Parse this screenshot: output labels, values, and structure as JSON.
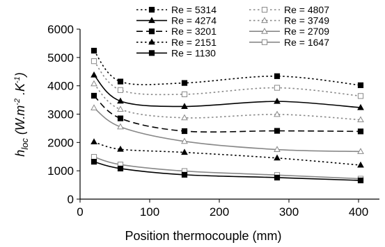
{
  "chart_data": {
    "type": "line",
    "xlabel": "Position thermocouple (mm)",
    "ylabel": {
      "main": "h",
      "sub": "loc",
      "unit_open": " (W.m",
      "exp1": "-2",
      "unit_mid": " .K",
      "exp2": "-1",
      "unit_close": ")"
    },
    "xlim": [
      0,
      430
    ],
    "ylim": [
      0,
      6000
    ],
    "xticks": [
      0,
      100,
      200,
      300,
      400
    ],
    "yticks": [
      0,
      1000,
      2000,
      3000,
      4000,
      5000,
      6000
    ],
    "grid": false,
    "legend_position": "top",
    "x": [
      20,
      58,
      150,
      283,
      403
    ],
    "series": [
      {
        "name": "Re = 5314",
        "color": "#000000",
        "dash": "dotted",
        "marker": "square-filled",
        "values": [
          5240,
          4150,
          4100,
          4340,
          4020
        ]
      },
      {
        "name": "Re = 4807",
        "color": "#888888",
        "dash": "dotted",
        "marker": "square-open",
        "values": [
          4870,
          3850,
          3700,
          3930,
          3640
        ]
      },
      {
        "name": "Re = 4274",
        "color": "#000000",
        "dash": "solid",
        "marker": "triangle-filled",
        "values": [
          4380,
          3460,
          3270,
          3450,
          3230
        ]
      },
      {
        "name": "Re = 3749",
        "color": "#888888",
        "dash": "dotted",
        "marker": "triangle-open",
        "values": [
          4070,
          3170,
          2870,
          2990,
          2800
        ]
      },
      {
        "name": "Re = 3201",
        "color": "#000000",
        "dash": "dashed",
        "marker": "square-filled",
        "values": [
          3650,
          2850,
          2400,
          2410,
          2390
        ]
      },
      {
        "name": "Re = 2709",
        "color": "#888888",
        "dash": "solid",
        "marker": "triangle-open",
        "values": [
          3220,
          2550,
          2040,
          1750,
          1680
        ]
      },
      {
        "name": "Re = 2151",
        "color": "#000000",
        "dash": "dotted",
        "marker": "triangle-filled",
        "values": [
          2020,
          1760,
          1650,
          1450,
          1200
        ]
      },
      {
        "name": "Re = 1647",
        "color": "#888888",
        "dash": "solid",
        "marker": "square-open",
        "values": [
          1490,
          1220,
          990,
          850,
          720
        ]
      },
      {
        "name": "Re = 1130",
        "color": "#000000",
        "dash": "solid",
        "marker": "square-filled",
        "values": [
          1320,
          1080,
          860,
          760,
          660
        ]
      }
    ]
  }
}
